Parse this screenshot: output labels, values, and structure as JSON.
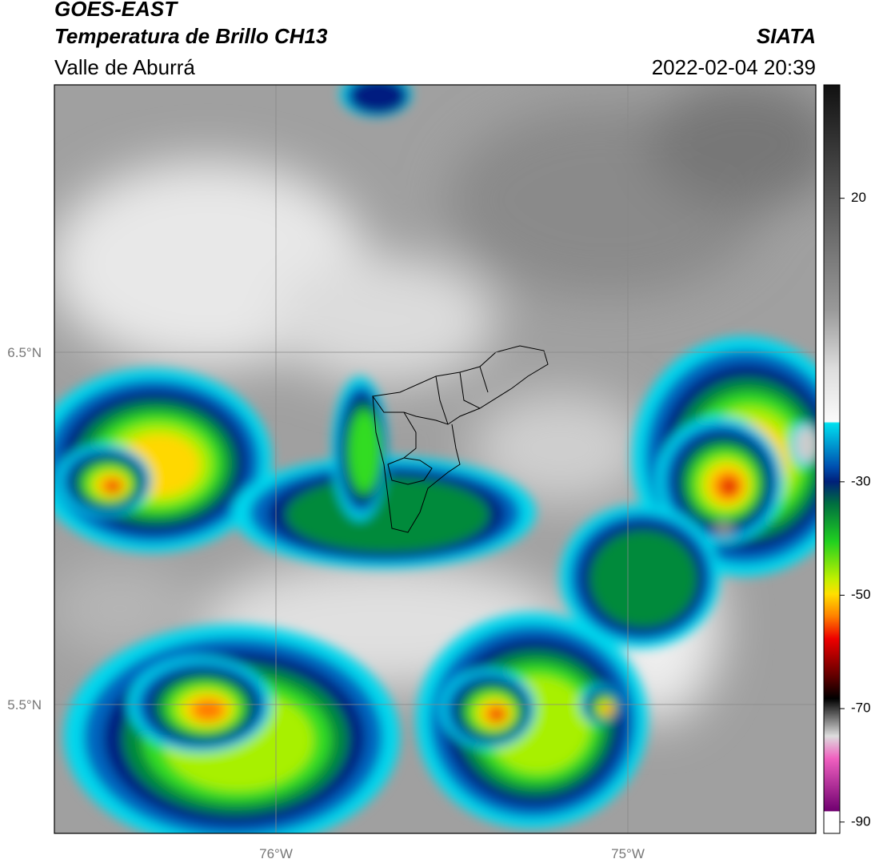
{
  "header": {
    "title": "GOES-EAST",
    "subtitle": "Temperatura de Brillo CH13",
    "region": "Valle de Aburrá",
    "source": "SIATA",
    "datetime": "2022-02-04 20:39"
  },
  "map": {
    "lat_labels": [
      "6.5°N",
      "5.5°N"
    ],
    "lon_labels": [
      "76°W",
      "75°W"
    ]
  },
  "colorbar": {
    "lim": [
      -92,
      40
    ],
    "ticks": [
      20,
      -30,
      -50,
      -70,
      -90
    ]
  }
}
